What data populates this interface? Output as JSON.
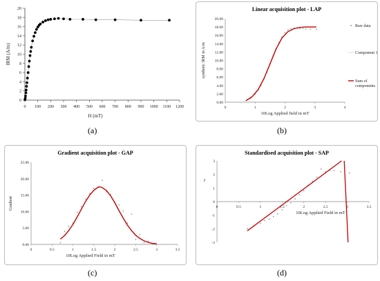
{
  "captions": [
    "(a)",
    "(b)",
    "(c)",
    "(d)"
  ],
  "chart_data": [
    {
      "type": "scatter",
      "title": "",
      "xlabel": "H (mT)",
      "ylabel": "IRM (A/m)",
      "xlim": [
        0,
        1200
      ],
      "ylim": [
        0,
        20
      ],
      "xticks": [
        "0",
        "100",
        "200",
        "300",
        "400",
        "500",
        "600",
        "700",
        "800",
        "900",
        "1000",
        "1100",
        "1200"
      ],
      "yticks": [
        "0",
        "2",
        "4",
        "6",
        "8",
        "10",
        "12",
        "14",
        "16",
        "18",
        "20"
      ],
      "grid": false,
      "x": [
        1,
        3,
        5,
        8,
        10,
        13,
        16,
        20,
        25,
        30,
        35,
        40,
        45,
        50,
        60,
        70,
        80,
        90,
        100,
        110,
        120,
        140,
        160,
        180,
        200,
        230,
        260,
        300,
        350,
        450,
        550,
        700,
        900,
        1120
      ],
      "y": [
        0.1,
        0.4,
        0.9,
        1.6,
        2.2,
        3.0,
        3.8,
        4.8,
        6.0,
        7.3,
        8.5,
        9.7,
        10.6,
        11.5,
        12.9,
        13.9,
        14.7,
        15.4,
        15.9,
        16.3,
        16.6,
        17.0,
        17.3,
        17.5,
        17.6,
        17.7,
        17.8,
        17.7,
        17.6,
        17.6,
        17.5,
        17.5,
        17.4,
        17.4
      ],
      "colors": {
        "points": "#000000",
        "line": "#999999"
      }
    },
    {
      "type": "line",
      "title": "Linear acquisition plot - LAP",
      "xlabel": "10Log Applied field in mT",
      "ylabel": "synthetic IRM in A/m",
      "xlim": [
        0,
        4
      ],
      "ylim": [
        0,
        20
      ],
      "xticks": [
        "0",
        "1",
        "2",
        "3",
        "4"
      ],
      "yticks": [
        "0.00",
        "2.00",
        "4.00",
        "6.00",
        "8.00",
        "10.00",
        "12.00",
        "14.00",
        "16.00",
        "18.00",
        "20.00"
      ],
      "grid": false,
      "legend": [
        "Raw data",
        "Component 1",
        "Sum of components"
      ],
      "legend_position": "right",
      "raw_x": [
        0.7,
        0.85,
        1.0,
        1.1,
        1.2,
        1.3,
        1.4,
        1.5,
        1.6,
        1.7,
        1.8,
        1.9,
        2.0,
        2.1,
        2.2,
        2.3,
        2.4,
        2.5,
        2.6,
        2.7,
        2.85,
        3.05
      ],
      "raw_y": [
        0.4,
        0.9,
        1.9,
        2.9,
        4.0,
        5.6,
        7.2,
        9.2,
        11.1,
        12.8,
        14.3,
        15.6,
        16.6,
        17.3,
        17.6,
        17.7,
        17.8,
        17.6,
        17.6,
        17.5,
        17.5,
        17.4
      ],
      "series": [
        {
          "name": "Sum of components",
          "x": [
            0.7,
            0.9,
            1.1,
            1.3,
            1.5,
            1.7,
            1.9,
            2.1,
            2.3,
            2.5,
            2.7,
            2.9,
            3.05
          ],
          "y": [
            0.4,
            1.3,
            3.0,
            5.7,
            9.2,
            12.7,
            15.4,
            16.9,
            17.6,
            17.9,
            18.0,
            18.0,
            18.0
          ]
        }
      ],
      "colors": {
        "raw": "#999999",
        "sum": "#c00000"
      }
    },
    {
      "type": "line",
      "title": "Gradient acquisition plot - GAP",
      "xlabel": "10Log Applied Field in mT",
      "ylabel": "Gradient",
      "xlim": [
        0,
        3.5
      ],
      "ylim": [
        0,
        25
      ],
      "xticks": [
        "0",
        "0.5",
        "1",
        "1.5",
        "2",
        "2.5",
        "3",
        "3.5"
      ],
      "yticks": [
        "0.00",
        "5.00",
        "10.00",
        "15.00",
        "20.00",
        "25.00"
      ],
      "grid": false,
      "raw_x": [
        0.7,
        0.8,
        0.9,
        1.0,
        1.1,
        1.2,
        1.3,
        1.4,
        1.5,
        1.6,
        1.7,
        1.8,
        1.9,
        2.0,
        2.1,
        2.2,
        2.3,
        2.4,
        2.5,
        2.6,
        2.7,
        2.8,
        2.9
      ],
      "raw_y": [
        0.5,
        4.0,
        5.5,
        6.5,
        9.8,
        11.5,
        13.8,
        15.5,
        17.0,
        17.5,
        19.5,
        16.0,
        15.2,
        12.8,
        12.0,
        10.2,
        6.5,
        9.2,
        1.5,
        3.0,
        0.5,
        1.0,
        0.3
      ],
      "series": [
        {
          "name": "",
          "x": [
            0.7,
            0.8,
            0.9,
            1.0,
            1.1,
            1.2,
            1.3,
            1.4,
            1.5,
            1.6,
            1.65,
            1.7,
            1.8,
            1.9,
            2.0,
            2.1,
            2.2,
            2.3,
            2.4,
            2.5,
            2.6,
            2.7,
            2.8,
            2.9,
            3.0
          ],
          "y": [
            1.6,
            2.7,
            4.2,
            6.1,
            8.3,
            10.7,
            13.0,
            15.0,
            16.5,
            17.4,
            17.5,
            17.3,
            16.4,
            14.8,
            12.7,
            10.3,
            8.0,
            5.9,
            4.2,
            2.8,
            1.8,
            1.1,
            0.6,
            0.3,
            0.2
          ]
        }
      ],
      "colors": {
        "raw": "#999999",
        "fit": "#c00000"
      }
    },
    {
      "type": "line",
      "title": "Standardised acquisition plot - SAP",
      "xlabel": "10Log Applied Field in mT",
      "ylabel": "z",
      "xlim": [
        0,
        3.5
      ],
      "ylim": [
        -3,
        3
      ],
      "xticks": [
        "0",
        "0.5",
        "1",
        "1.5",
        "2",
        "2.5",
        "3",
        "3.5"
      ],
      "yticks": [
        "-3",
        "-2",
        "-1",
        "0",
        "1",
        "2",
        "3"
      ],
      "grid": false,
      "raw_x": [
        0.7,
        0.85,
        1.0,
        1.1,
        1.2,
        1.3,
        1.4,
        1.5,
        1.6,
        1.7,
        1.8,
        1.9,
        2.0,
        2.1,
        2.2,
        2.3,
        2.4,
        2.5,
        2.6,
        2.7,
        2.85,
        3.05
      ],
      "raw_y": [
        -2.0,
        -1.8,
        -1.6,
        -1.4,
        -1.3,
        -1.1,
        -0.9,
        -0.6,
        -0.3,
        -0.1,
        0.2,
        0.5,
        0.8,
        1.2,
        1.5,
        1.8,
        2.4,
        2.2,
        2.3,
        2.3,
        2.2,
        2.1
      ],
      "series": [
        {
          "name": "",
          "x": [
            0.7,
            2.87
          ],
          "y": [
            -2.15,
            3.0
          ]
        },
        {
          "name": "",
          "x": [
            2.93,
            3.02
          ],
          "y": [
            3.0,
            -3.0
          ]
        }
      ],
      "colors": {
        "raw": "#999999",
        "fit": "#c00000"
      }
    }
  ]
}
